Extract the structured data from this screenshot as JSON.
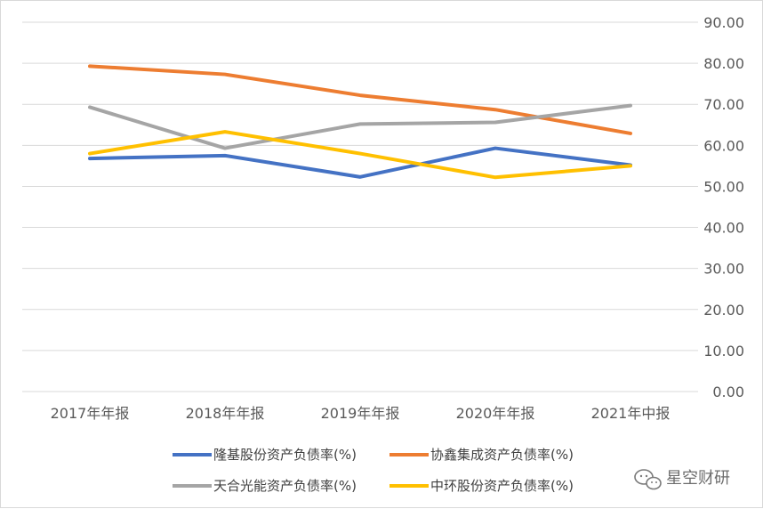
{
  "chart_data": {
    "type": "line",
    "categories": [
      "2017年年报",
      "2018年年报",
      "2019年年报",
      "2020年年报",
      "2021年中报"
    ],
    "ylim": [
      0,
      90
    ],
    "yticks": [
      "0.00",
      "10.00",
      "20.00",
      "30.00",
      "40.00",
      "50.00",
      "60.00",
      "70.00",
      "80.00",
      "90.00"
    ],
    "y_axis_side": "right",
    "grid": true,
    "legend_position": "bottom",
    "series": [
      {
        "name": "隆基股份资产负债率(%)",
        "color": "#4472C4",
        "values": [
          56.8,
          57.5,
          52.3,
          59.3,
          55.2
        ]
      },
      {
        "name": "协鑫集成资产负债率(%)",
        "color": "#ED7D31",
        "values": [
          79.3,
          77.3,
          72.2,
          68.7,
          62.9
        ]
      },
      {
        "name": "天合光能资产负债率(%)",
        "color": "#A5A5A5",
        "values": [
          69.3,
          59.3,
          65.2,
          65.6,
          69.7
        ]
      },
      {
        "name": "中环股份资产负债率(%)",
        "color": "#FFC000",
        "values": [
          58.0,
          63.3,
          58.0,
          52.2,
          55.0
        ]
      }
    ]
  },
  "watermark": {
    "text": "星空财研",
    "icon": "wechat-icon"
  }
}
